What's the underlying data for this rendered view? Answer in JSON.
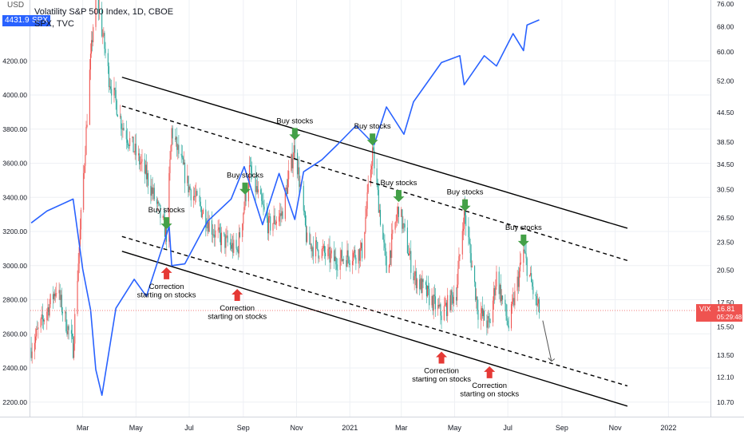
{
  "header": {
    "currency": "USD",
    "title": "Volatility S&P 500 Index, 1D, CBOE",
    "spx_value": "4431.97",
    "spx_ticker": "SPX",
    "overlay_source": "SPX, TVC"
  },
  "colors": {
    "spx_line": "#2962ff",
    "candle_up": "#26a69a",
    "candle_down": "#ef5350",
    "channel": "#000000",
    "arrow_up": "#e53935",
    "arrow_down": "#43a047"
  },
  "chart_data": {
    "type": "line",
    "title": "Volatility S&P 500 Index, 1D, CBOE",
    "x_tick_labels": [
      "Mar",
      "May",
      "Jul",
      "Sep",
      "Nov",
      "2021",
      "Mar",
      "May",
      "Jul",
      "Sep",
      "Nov",
      "2022"
    ],
    "left_axis": {
      "labels": [
        "4200.00",
        "4000.00",
        "3800.00",
        "3600.00",
        "3400.00",
        "3200.00",
        "3000.00",
        "2800.00",
        "2600.00",
        "2400.00",
        "2200.00"
      ],
      "range": [
        2140,
        4660
      ]
    },
    "right_axis": {
      "labels": [
        "76.00",
        "68.00",
        "60.00",
        "52.00",
        "44.50",
        "38.50",
        "34.50",
        "30.50",
        "26.50",
        "23.50",
        "20.50",
        "17.50",
        "15.50",
        "13.50",
        "12.10",
        "10.70"
      ],
      "scale": "log",
      "range": [
        9.5,
        78
      ]
    },
    "series": [
      {
        "name": "SPX",
        "axis": "left",
        "x": [
          "2020-01-02",
          "2020-01-20",
          "2020-02-19",
          "2020-03-01",
          "2020-03-10",
          "2020-03-16",
          "2020-03-23",
          "2020-04-08",
          "2020-04-29",
          "2020-05-13",
          "2020-06-08",
          "2020-06-11",
          "2020-06-26",
          "2020-07-22",
          "2020-08-18",
          "2020-09-02",
          "2020-09-23",
          "2020-10-12",
          "2020-10-30",
          "2020-11-09",
          "2020-11-30",
          "2020-12-18",
          "2021-01-08",
          "2021-01-29",
          "2021-02-12",
          "2021-03-04",
          "2021-03-15",
          "2021-04-16",
          "2021-05-07",
          "2021-05-12",
          "2021-06-04",
          "2021-06-18",
          "2021-07-07",
          "2021-07-19",
          "2021-07-23",
          "2021-08-06"
        ],
        "values": [
          3250,
          3320,
          3390,
          2980,
          2740,
          2390,
          2240,
          2750,
          2920,
          2820,
          3230,
          3000,
          3010,
          3260,
          3390,
          3580,
          3240,
          3540,
          3270,
          3550,
          3620,
          3710,
          3820,
          3710,
          3930,
          3770,
          3960,
          4190,
          4230,
          4060,
          4230,
          4170,
          4360,
          4260,
          4410,
          4440
        ]
      },
      {
        "name": "VIX",
        "axis": "right",
        "x": [
          "2020-01-02",
          "2020-01-31",
          "2020-02-19",
          "2020-03-09",
          "2020-03-16",
          "2020-03-31",
          "2020-04-15",
          "2020-05-15",
          "2020-06-05",
          "2020-06-11",
          "2020-06-30",
          "2020-07-31",
          "2020-08-25",
          "2020-09-08",
          "2020-09-30",
          "2020-10-15",
          "2020-10-30",
          "2020-11-13",
          "2020-12-15",
          "2021-01-15",
          "2021-01-27",
          "2021-02-12",
          "2021-02-26",
          "2021-03-15",
          "2021-04-16",
          "2021-05-03",
          "2021-05-12",
          "2021-05-28",
          "2021-06-10",
          "2021-06-18",
          "2021-07-02",
          "2021-07-19",
          "2021-08-02",
          "2021-08-06"
        ],
        "values": [
          14,
          18.8,
          14,
          54,
          82,
          53,
          42,
          32,
          24.5,
          40.8,
          31,
          24.5,
          22.5,
          33.5,
          25.5,
          27,
          38,
          23.5,
          21.5,
          22.5,
          37,
          20.5,
          28,
          20,
          16.5,
          18.5,
          27.6,
          16.8,
          15.6,
          20,
          15.5,
          22.5,
          17.5,
          16.81
        ]
      }
    ],
    "channels": [
      {
        "id": "upper-solid",
        "style": "solid",
        "from": {
          "x": "2020-04-15",
          "vix": 53
        },
        "to": {
          "x": "2021-11-15",
          "vix": 25.2
        }
      },
      {
        "id": "upper-dashed",
        "style": "dashed",
        "from": {
          "x": "2020-04-15",
          "vix": 46
        },
        "to": {
          "x": "2021-11-15",
          "vix": 21.5
        }
      },
      {
        "id": "lower-dashed",
        "style": "dashed",
        "from": {
          "x": "2020-04-15",
          "vix": 24.2
        },
        "to": {
          "x": "2021-11-15",
          "vix": 11.6
        }
      },
      {
        "id": "lower-solid",
        "style": "solid",
        "from": {
          "x": "2020-04-15",
          "vix": 22.5
        },
        "to": {
          "x": "2021-11-15",
          "vix": 10.5
        }
      }
    ],
    "annotations": [
      {
        "kind": "buy",
        "x": "2020-06-05",
        "text": "Buy stocks"
      },
      {
        "kind": "buy",
        "x": "2020-09-03",
        "text": "Buy stocks"
      },
      {
        "kind": "buy",
        "x": "2020-10-30",
        "text": "Buy stocks"
      },
      {
        "kind": "buy",
        "x": "2021-01-27",
        "text": "Buy stocks"
      },
      {
        "kind": "buy",
        "x": "2021-02-26",
        "text": "Buy stocks"
      },
      {
        "kind": "buy",
        "x": "2021-05-13",
        "text": "Buy stocks"
      },
      {
        "kind": "buy",
        "x": "2021-07-19",
        "text": "Buy stocks"
      },
      {
        "kind": "correction",
        "x": "2020-06-05",
        "text": [
          "Correction",
          "starting on stocks"
        ]
      },
      {
        "kind": "correction",
        "x": "2020-08-25",
        "text": [
          "Correction",
          "starting on stocks"
        ]
      },
      {
        "kind": "correction",
        "x": "2021-04-16",
        "text": [
          "Correction",
          "starting on stocks"
        ]
      },
      {
        "kind": "correction",
        "x": "2021-06-10",
        "text": [
          "Correction",
          "starting on stocks"
        ]
      }
    ],
    "projection": {
      "from": {
        "x": "2021-08-10",
        "vix": 16.0
      },
      "to": {
        "x": "2021-08-20",
        "vix": 13.1
      }
    },
    "last_price": {
      "label": "VIX",
      "value": "16.81",
      "countdown": "05:29:48"
    }
  }
}
